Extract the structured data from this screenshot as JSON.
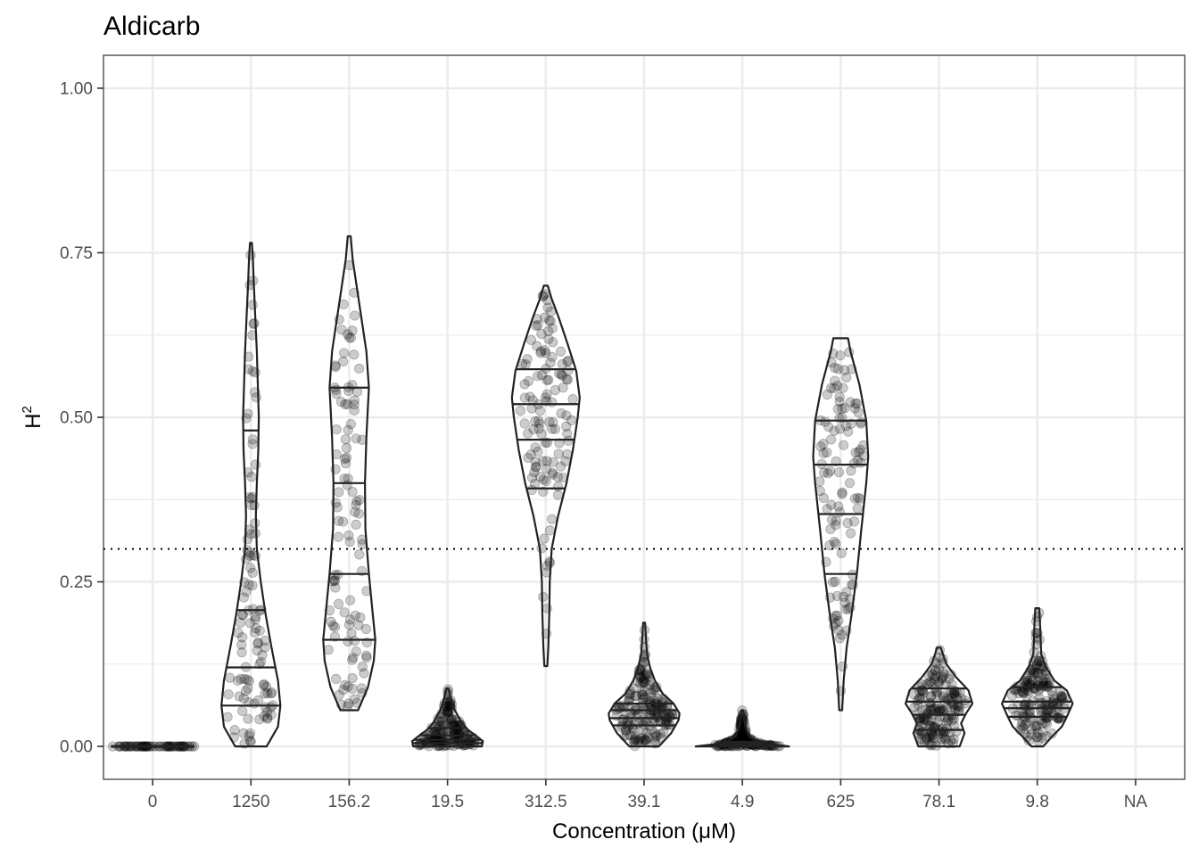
{
  "chart_data": {
    "type": "violin",
    "title": "Aldicarb",
    "xlabel": "Concentration (μM)",
    "ylabel": "H",
    "ylabel_superscript": "2",
    "categories": [
      "0",
      "1250",
      "156.2",
      "19.5",
      "312.5",
      "39.1",
      "4.9",
      "625",
      "78.1",
      "9.8",
      "NA"
    ],
    "ylim": [
      -0.05,
      1.05
    ],
    "yticks": [
      0.0,
      0.25,
      0.5,
      0.75,
      1.0
    ],
    "ytick_labels": [
      "0.00",
      "0.25",
      "0.50",
      "0.75",
      "1.00"
    ],
    "reference_line": 0.3,
    "grid": true,
    "series": [
      {
        "name": "0",
        "min": 0.0,
        "max": 0.0,
        "quantiles": [],
        "n_points": 60,
        "profile": [
          [
            0.0,
            1.0
          ]
        ]
      },
      {
        "name": "1250",
        "min": 0.0,
        "max": 0.765,
        "quantiles": [
          0.062,
          0.12,
          0.207,
          0.48
        ],
        "n_points": 110,
        "profile": [
          [
            0.0,
            0.32
          ],
          [
            0.03,
            0.55
          ],
          [
            0.062,
            0.6
          ],
          [
            0.1,
            0.55
          ],
          [
            0.15,
            0.42
          ],
          [
            0.2,
            0.3
          ],
          [
            0.25,
            0.2
          ],
          [
            0.3,
            0.12
          ],
          [
            0.35,
            0.1
          ],
          [
            0.4,
            0.12
          ],
          [
            0.45,
            0.15
          ],
          [
            0.5,
            0.16
          ],
          [
            0.55,
            0.14
          ],
          [
            0.6,
            0.12
          ],
          [
            0.65,
            0.09
          ],
          [
            0.7,
            0.06
          ],
          [
            0.74,
            0.04
          ],
          [
            0.765,
            0.02
          ]
        ]
      },
      {
        "name": "156.2",
        "min": 0.055,
        "max": 0.775,
        "quantiles": [
          0.162,
          0.262,
          0.4,
          0.545
        ],
        "n_points": 110,
        "profile": [
          [
            0.055,
            0.18
          ],
          [
            0.09,
            0.38
          ],
          [
            0.13,
            0.5
          ],
          [
            0.162,
            0.53
          ],
          [
            0.2,
            0.48
          ],
          [
            0.262,
            0.4
          ],
          [
            0.33,
            0.33
          ],
          [
            0.4,
            0.32
          ],
          [
            0.47,
            0.35
          ],
          [
            0.545,
            0.4
          ],
          [
            0.6,
            0.35
          ],
          [
            0.65,
            0.25
          ],
          [
            0.7,
            0.15
          ],
          [
            0.74,
            0.07
          ],
          [
            0.775,
            0.03
          ]
        ]
      },
      {
        "name": "19.5",
        "min": 0.0,
        "max": 0.088,
        "quantiles": [
          0.005,
          0.01,
          0.017,
          0.028
        ],
        "n_points": 160,
        "profile": [
          [
            0.0,
            0.7
          ],
          [
            0.008,
            0.72
          ],
          [
            0.015,
            0.6
          ],
          [
            0.025,
            0.42
          ],
          [
            0.035,
            0.3
          ],
          [
            0.045,
            0.22
          ],
          [
            0.055,
            0.15
          ],
          [
            0.065,
            0.1
          ],
          [
            0.075,
            0.06
          ],
          [
            0.082,
            0.04
          ],
          [
            0.088,
            0.02
          ]
        ]
      },
      {
        "name": "312.5",
        "min": 0.122,
        "max": 0.7,
        "quantiles": [
          0.392,
          0.466,
          0.52,
          0.573
        ],
        "n_points": 120,
        "profile": [
          [
            0.122,
            0.03
          ],
          [
            0.15,
            0.05
          ],
          [
            0.2,
            0.07
          ],
          [
            0.25,
            0.08
          ],
          [
            0.3,
            0.12
          ],
          [
            0.35,
            0.25
          ],
          [
            0.4,
            0.42
          ],
          [
            0.45,
            0.55
          ],
          [
            0.5,
            0.65
          ],
          [
            0.53,
            0.69
          ],
          [
            0.57,
            0.62
          ],
          [
            0.61,
            0.45
          ],
          [
            0.65,
            0.27
          ],
          [
            0.68,
            0.12
          ],
          [
            0.7,
            0.04
          ]
        ]
      },
      {
        "name": "39.1",
        "min": 0.0,
        "max": 0.188,
        "quantiles": [
          0.032,
          0.043,
          0.055,
          0.065
        ],
        "n_points": 170,
        "profile": [
          [
            0.0,
            0.3
          ],
          [
            0.02,
            0.55
          ],
          [
            0.04,
            0.7
          ],
          [
            0.05,
            0.72
          ],
          [
            0.065,
            0.6
          ],
          [
            0.08,
            0.38
          ],
          [
            0.1,
            0.22
          ],
          [
            0.12,
            0.12
          ],
          [
            0.14,
            0.06
          ],
          [
            0.16,
            0.04
          ],
          [
            0.188,
            0.02
          ]
        ]
      },
      {
        "name": "4.9",
        "min": 0.0,
        "max": 0.055,
        "quantiles": [
          0.001,
          0.002,
          0.004,
          0.007
        ],
        "n_points": 160,
        "profile": [
          [
            0.0,
            0.95
          ],
          [
            0.003,
            0.6
          ],
          [
            0.008,
            0.3
          ],
          [
            0.015,
            0.14
          ],
          [
            0.025,
            0.08
          ],
          [
            0.035,
            0.05
          ],
          [
            0.045,
            0.03
          ],
          [
            0.055,
            0.02
          ]
        ]
      },
      {
        "name": "625",
        "min": 0.055,
        "max": 0.62,
        "quantiles": [
          0.262,
          0.353,
          0.428,
          0.495
        ],
        "n_points": 110,
        "profile": [
          [
            0.055,
            0.03
          ],
          [
            0.1,
            0.06
          ],
          [
            0.15,
            0.12
          ],
          [
            0.2,
            0.22
          ],
          [
            0.262,
            0.33
          ],
          [
            0.33,
            0.42
          ],
          [
            0.4,
            0.52
          ],
          [
            0.44,
            0.56
          ],
          [
            0.495,
            0.52
          ],
          [
            0.55,
            0.38
          ],
          [
            0.6,
            0.2
          ],
          [
            0.62,
            0.15
          ]
        ]
      },
      {
        "name": "78.1",
        "min": 0.0,
        "max": 0.15,
        "quantiles": [
          0.025,
          0.048,
          0.068,
          0.088
        ],
        "n_points": 170,
        "profile": [
          [
            0.0,
            0.42
          ],
          [
            0.02,
            0.52
          ],
          [
            0.035,
            0.45
          ],
          [
            0.05,
            0.55
          ],
          [
            0.065,
            0.68
          ],
          [
            0.085,
            0.6
          ],
          [
            0.105,
            0.35
          ],
          [
            0.125,
            0.15
          ],
          [
            0.14,
            0.08
          ],
          [
            0.15,
            0.04
          ]
        ]
      },
      {
        "name": "9.8",
        "min": 0.0,
        "max": 0.21,
        "quantiles": [
          0.045,
          0.058,
          0.068,
          0.09
        ],
        "n_points": 170,
        "profile": [
          [
            0.0,
            0.12
          ],
          [
            0.015,
            0.3
          ],
          [
            0.03,
            0.5
          ],
          [
            0.045,
            0.6
          ],
          [
            0.065,
            0.72
          ],
          [
            0.085,
            0.6
          ],
          [
            0.1,
            0.35
          ],
          [
            0.12,
            0.18
          ],
          [
            0.14,
            0.08
          ],
          [
            0.16,
            0.07
          ],
          [
            0.18,
            0.06
          ],
          [
            0.21,
            0.04
          ]
        ]
      }
    ]
  }
}
